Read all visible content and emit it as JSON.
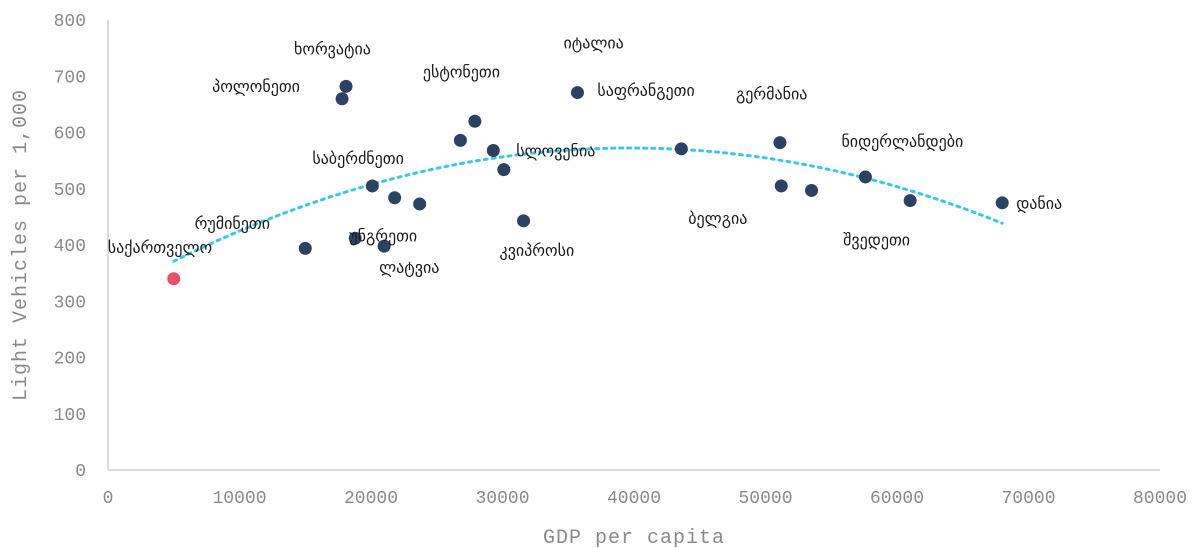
{
  "chart_data": {
    "type": "scatter",
    "title": "",
    "xlabel": "GDP per capita",
    "ylabel": "Light Vehicles per 1,000",
    "xlim": [
      0,
      80000
    ],
    "ylim": [
      0,
      800
    ],
    "x_ticks": [
      "0",
      "10000",
      "20000",
      "30000",
      "40000",
      "50000",
      "60000",
      "70000",
      "80000"
    ],
    "y_ticks": [
      "0",
      "100",
      "200",
      "300",
      "400",
      "500",
      "600",
      "700",
      "800"
    ],
    "grid": false,
    "legend": "none",
    "colors": {
      "points": "#2d4263",
      "highlight": "#e8506e",
      "trend": "#3cc8e0",
      "axis": "#d0d0d0",
      "text": "#8a8a8a"
    },
    "points": [
      {
        "x": 5000,
        "y": 340,
        "label": "საქართველო",
        "highlight": true
      },
      {
        "x": 15000,
        "y": 394,
        "label": ""
      },
      {
        "x": 17800,
        "y": 660,
        "label": "პოლონეთი"
      },
      {
        "x": 18100,
        "y": 682,
        "label": "ხორვატია"
      },
      {
        "x": 18800,
        "y": 412,
        "label": "უნგრეთი"
      },
      {
        "x": 20100,
        "y": 505,
        "label": "საბერძნეთი"
      },
      {
        "x": 21000,
        "y": 398,
        "label": "ლატვია"
      },
      {
        "x": 21800,
        "y": 484,
        "label": "რუმინეთი"
      },
      {
        "x": 23700,
        "y": 473,
        "label": ""
      },
      {
        "x": 26800,
        "y": 586,
        "label": ""
      },
      {
        "x": 27900,
        "y": 620,
        "label": "ესტონეთი"
      },
      {
        "x": 29300,
        "y": 568,
        "label": "სლოვენია"
      },
      {
        "x": 30100,
        "y": 534,
        "label": ""
      },
      {
        "x": 31600,
        "y": 443,
        "label": "კვიპროსი"
      },
      {
        "x": 35700,
        "y": 671,
        "label": "იტალია"
      },
      {
        "x": 43600,
        "y": 571,
        "label": "საფრანგეთი"
      },
      {
        "x": 51100,
        "y": 582,
        "label": "გერმანია"
      },
      {
        "x": 51200,
        "y": 505,
        "label": "ბელგია"
      },
      {
        "x": 53500,
        "y": 497,
        "label": ""
      },
      {
        "x": 57600,
        "y": 521,
        "label": "ნიდერლანდები"
      },
      {
        "x": 61000,
        "y": 479,
        "label": "შვედეთი"
      },
      {
        "x": 68000,
        "y": 475,
        "label": "დანია"
      }
    ],
    "trendline": {
      "type": "polynomial",
      "x_from": 5000,
      "x_to": 68000
    }
  }
}
